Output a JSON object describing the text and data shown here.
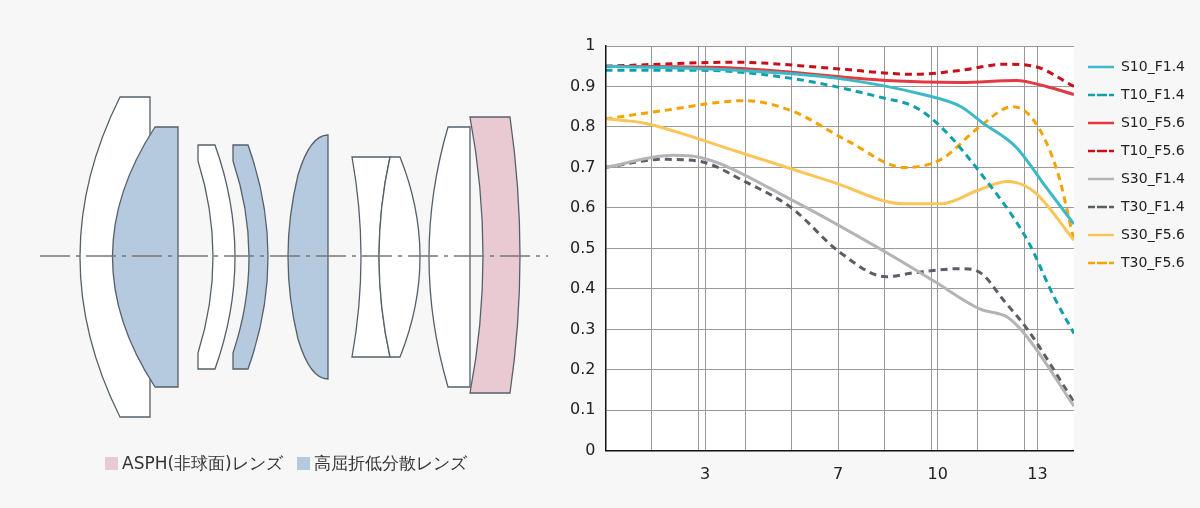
{
  "chart_data": {
    "type": "line",
    "xlim": [
      0,
      14.1
    ],
    "xticks": [
      {
        "value": 1.4,
        "label": null
      },
      {
        "value": 2.8,
        "label": null
      },
      3,
      {
        "value": 4.2,
        "label": null
      },
      {
        "value": 5.6,
        "label": null
      },
      7,
      {
        "value": 8.4,
        "label": null
      },
      {
        "value": 9.8,
        "label": null
      },
      10,
      {
        "value": 11.2,
        "label": null
      },
      {
        "value": 12.6,
        "label": null
      },
      13
    ],
    "ylim": [
      0,
      1
    ],
    "yticks": [
      0,
      0.1,
      0.2,
      0.3,
      0.4,
      0.5,
      0.6,
      0.7,
      0.8,
      0.9,
      1
    ],
    "grid": true,
    "legend": "top right",
    "marker": "none",
    "annotations": [
      "ASPH(非球面)レンズ",
      "高屈折低分散レンズ"
    ],
    "series": [
      {
        "name": "S10_F1.4",
        "color": "#3cb8c6",
        "line_style": "solid",
        "x": [
          0,
          3.94,
          7.0,
          9.56,
          10.7,
          11.35,
          12.36,
          13.27,
          14.1
        ],
        "values": [
          0.95,
          0.94,
          0.92,
          0.88,
          0.85,
          0.81,
          0.75,
          0.65,
          0.56
        ]
      },
      {
        "name": "T10_F1.4",
        "color": "#109fab",
        "line_style": "dashed",
        "x": [
          0,
          2.83,
          5.6,
          8.45,
          9.3,
          10.1,
          11.25,
          12.7,
          13.5,
          14.1
        ],
        "values": [
          0.94,
          0.94,
          0.92,
          0.87,
          0.85,
          0.8,
          0.69,
          0.52,
          0.38,
          0.29
        ]
      },
      {
        "name": "S10_F5.6",
        "color": "#e23a40",
        "line_style": "solid",
        "x": [
          0,
          3.94,
          8.45,
          10.7,
          12.36,
          13.27,
          14.1
        ],
        "values": [
          0.95,
          0.945,
          0.915,
          0.91,
          0.915,
          0.9,
          0.88
        ]
      },
      {
        "name": "T10_F5.6",
        "color": "#c8101a",
        "line_style": "dashed",
        "x": [
          0,
          3.94,
          6.8,
          9.3,
          10.7,
          12.0,
          12.9,
          14.1
        ],
        "values": [
          0.95,
          0.96,
          0.945,
          0.93,
          0.94,
          0.955,
          0.95,
          0.9
        ]
      },
      {
        "name": "S30_F1.4",
        "color": "#b4b4b4",
        "line_style": "solid",
        "x": [
          0,
          2.04,
          2.83,
          5.6,
          8.45,
          9.87,
          11.28,
          12.1,
          12.7,
          14.1
        ],
        "values": [
          0.7,
          0.73,
          0.725,
          0.62,
          0.49,
          0.42,
          0.35,
          0.33,
          0.28,
          0.11
        ]
      },
      {
        "name": "T30_F1.4",
        "color": "#5a5e66",
        "line_style": "dashed",
        "x": [
          0,
          1.7,
          2.83,
          4.2,
          5.6,
          7.06,
          8.45,
          9.3,
          10.7,
          11.28,
          12.0,
          12.7,
          14.1
        ],
        "values": [
          0.7,
          0.72,
          0.715,
          0.665,
          0.6,
          0.49,
          0.43,
          0.44,
          0.45,
          0.44,
          0.37,
          0.3,
          0.12
        ]
      },
      {
        "name": "S30_F5.6",
        "color": "#fbc55a",
        "line_style": "solid",
        "x": [
          0,
          1.14,
          3.94,
          6.8,
          9.0,
          10.1,
          11.25,
          12.1,
          12.9,
          14.1
        ],
        "values": [
          0.82,
          0.81,
          0.74,
          0.665,
          0.61,
          0.61,
          0.645,
          0.665,
          0.64,
          0.52
        ]
      },
      {
        "name": "T30_F5.6",
        "color": "#f5a300",
        "line_style": "dashed",
        "x": [
          0,
          1.7,
          4.2,
          5.6,
          7.3,
          9.0,
          10.1,
          11.25,
          12.25,
          12.9,
          13.6,
          14.1
        ],
        "values": [
          0.82,
          0.84,
          0.865,
          0.84,
          0.765,
          0.7,
          0.72,
          0.8,
          0.85,
          0.815,
          0.69,
          0.52
        ]
      }
    ]
  }
}
